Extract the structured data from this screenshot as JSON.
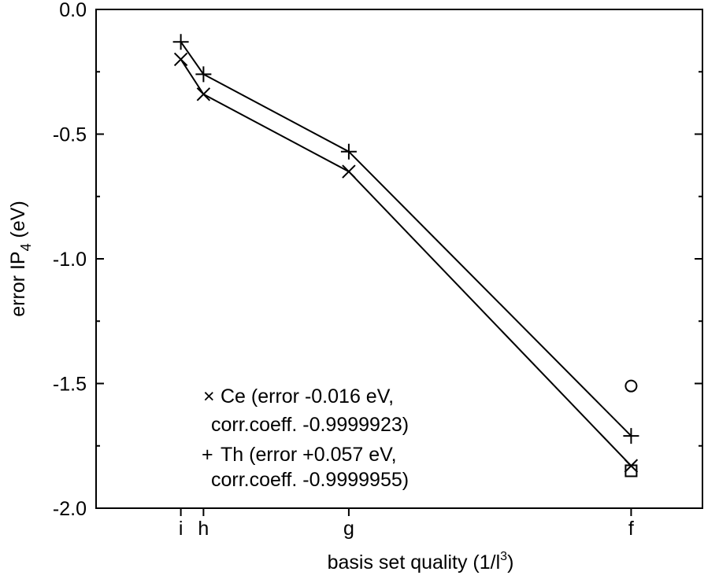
{
  "chart_data": {
    "type": "line",
    "xlabel": "basis set quality (1/l",
    "xlabel_sup": "3",
    "xlabel_close": ")",
    "ylabel": "error IP",
    "ylabel_sub": "4",
    "ylabel_unit": " (eV)",
    "x_categories": [
      "i",
      "h",
      "g",
      "f"
    ],
    "x_values": [
      0.00291545,
      0.00463,
      0.01563,
      0.037
    ],
    "xlim": [
      -0.0035,
      0.0424
    ],
    "ylim": [
      -2.0,
      0.0
    ],
    "y_ticks": [
      0.0,
      -0.5,
      -1.0,
      -1.5,
      -2.0
    ],
    "y_tick_labels": [
      "0.0",
      "-0.5",
      "-1.0",
      "-1.5",
      "-2.0"
    ],
    "series": [
      {
        "name": "Ce",
        "marker": "x",
        "values": [
          -0.2,
          -0.34,
          -0.65,
          -1.83
        ]
      },
      {
        "name": "Th",
        "marker": "+",
        "values": [
          -0.13,
          -0.26,
          -0.57,
          -1.71
        ]
      }
    ],
    "extra_points": [
      {
        "marker": "circle",
        "x": 0.037,
        "y": -1.51
      },
      {
        "marker": "square",
        "x": 0.037,
        "y": -1.85
      }
    ],
    "legend": {
      "placement": "bottom-left",
      "entries": [
        {
          "marker": "×",
          "line1": "Ce (error -0.016 eV,",
          "line2": "corr.coeff. -0.9999923)"
        },
        {
          "marker": "+",
          "line1": "Th (error +0.057 eV,",
          "line2": "corr.coeff. -0.9999955)"
        }
      ]
    },
    "grid": false
  }
}
